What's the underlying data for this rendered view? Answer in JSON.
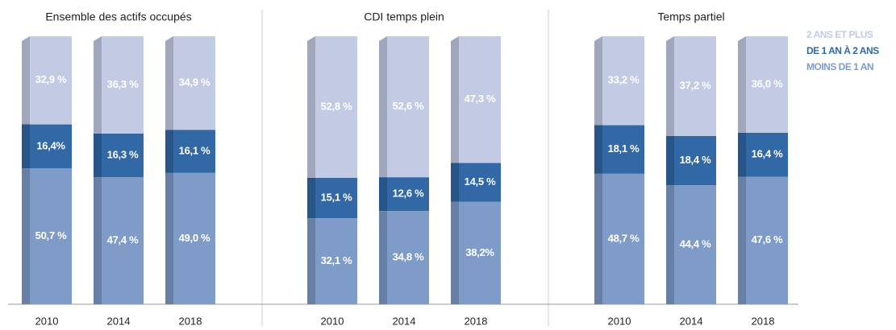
{
  "chart_data": [
    {
      "type": "bar",
      "stacked": true,
      "title": "Ensemble des actifs occupés",
      "categories": [
        "2010",
        "2014",
        "2018"
      ],
      "series": [
        {
          "name": "MOINS DE 1 AN",
          "color": "#7f9cc9",
          "values": [
            50.7,
            47.4,
            49.0
          ],
          "value_labels": [
            "50,7 %",
            "47,4 %",
            "49,0 %"
          ]
        },
        {
          "name": "DE 1 AN À 2 ANS",
          "color": "#3168a5",
          "values": [
            16.4,
            16.3,
            16.1
          ],
          "value_labels": [
            "16,4%",
            "16,3 %",
            "16,1 %"
          ]
        },
        {
          "name": "2 ANS ET PLUS",
          "color": "#c3cbe4",
          "values": [
            32.9,
            36.3,
            34.9
          ],
          "value_labels": [
            "32,9 %",
            "36,3 %",
            "34,9 %"
          ]
        }
      ]
    },
    {
      "type": "bar",
      "stacked": true,
      "title": "CDI temps plein",
      "categories": [
        "2010",
        "2014",
        "2018"
      ],
      "series": [
        {
          "color": "#7f9cc9",
          "values": [
            32.1,
            34.8,
            38.2
          ],
          "value_labels": [
            "32,1 %",
            "34,8 %",
            "38,2%"
          ]
        },
        {
          "color": "#3168a5",
          "values": [
            15.1,
            12.6,
            14.5
          ],
          "value_labels": [
            "15,1 %",
            "12,6 %",
            "14,5 %"
          ]
        },
        {
          "color": "#c3cbe4",
          "values": [
            52.8,
            52.6,
            47.3
          ],
          "value_labels": [
            "52,8 %",
            "52,6 %",
            "47,3 %"
          ]
        }
      ]
    },
    {
      "type": "bar",
      "stacked": true,
      "title": "Temps partiel",
      "categories": [
        "2010",
        "2014",
        "2018"
      ],
      "series": [
        {
          "color": "#7f9cc9",
          "values": [
            48.7,
            44.4,
            47.6
          ],
          "value_labels": [
            "48,7 %",
            "44,4 %",
            "47,6 %"
          ]
        },
        {
          "color": "#3168a5",
          "values": [
            18.1,
            18.4,
            16.4
          ],
          "value_labels": [
            "18,1 %",
            "18,4 %",
            "16,4 %"
          ]
        },
        {
          "color": "#c3cbe4",
          "values": [
            33.2,
            37.2,
            36.0
          ],
          "value_labels": [
            "33,2 %",
            "37,2 %",
            "36,0 %"
          ]
        }
      ]
    }
  ]
}
